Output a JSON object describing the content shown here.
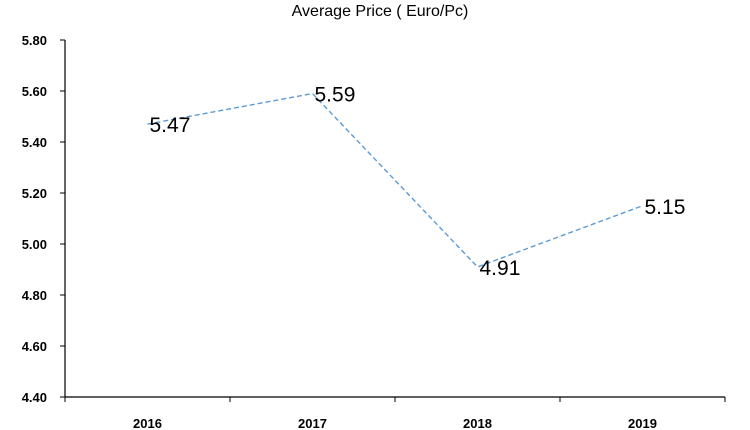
{
  "chart_data": {
    "type": "line",
    "title": "Average Price ( Euro/Pc)",
    "xlabel": "",
    "ylabel": "",
    "categories": [
      "2016",
      "2017",
      "2018",
      "2019"
    ],
    "series": [
      {
        "values": [
          5.47,
          5.59,
          4.91,
          5.15
        ]
      }
    ],
    "data_labels": [
      "5.47",
      "5.59",
      "4.91",
      "5.15"
    ],
    "ylim": [
      4.4,
      5.8
    ],
    "yticks": [
      "4.40",
      "4.60",
      "4.80",
      "5.00",
      "5.20",
      "5.40",
      "5.60",
      "5.80"
    ],
    "grid": false,
    "legend": "none",
    "line_color": "#5b9bd5",
    "line_style": "dashed"
  }
}
